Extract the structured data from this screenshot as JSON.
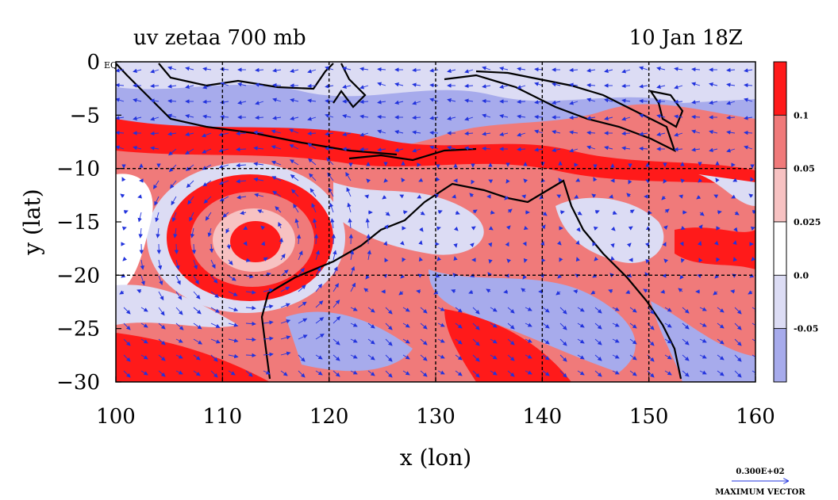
{
  "header": {
    "title": "uv zetaa 700 mb",
    "date": "10 Jan 18Z"
  },
  "map": {
    "corner_label": "EQ",
    "lon_range": [
      100,
      160
    ],
    "lat_range": [
      -30,
      0
    ],
    "x_ticks": [
      "100",
      "110",
      "120",
      "130",
      "140",
      "150",
      "160"
    ],
    "y_ticks": [
      "0",
      "−5",
      "−10",
      "−15",
      "−20",
      "−25",
      "−30"
    ],
    "xlabel": "x (lon)",
    "ylabel": "y (lat)",
    "grid": true,
    "colors": {
      "strong_pos": "#ff1a1a",
      "mid_pos": "#f07a7a",
      "light_pos": "#f7c2c2",
      "neutral": "#ffffff",
      "light_neg": "#dcdcf4",
      "strong_neg": "#a7abec",
      "vector": "#2233dd",
      "coast": "#000000"
    }
  },
  "colorbar": {
    "labels": [
      "0.1",
      "0.05",
      "0.025",
      "0.0",
      "-0.05"
    ],
    "bands": [
      "#ff1a1a",
      "#f07a7a",
      "#f7c2c2",
      "#ffffff",
      "#dcdcf4",
      "#a7abec"
    ]
  },
  "legend": {
    "vector_value": "0.300E+02",
    "vector_label": "MAXIMUM VECTOR"
  }
}
